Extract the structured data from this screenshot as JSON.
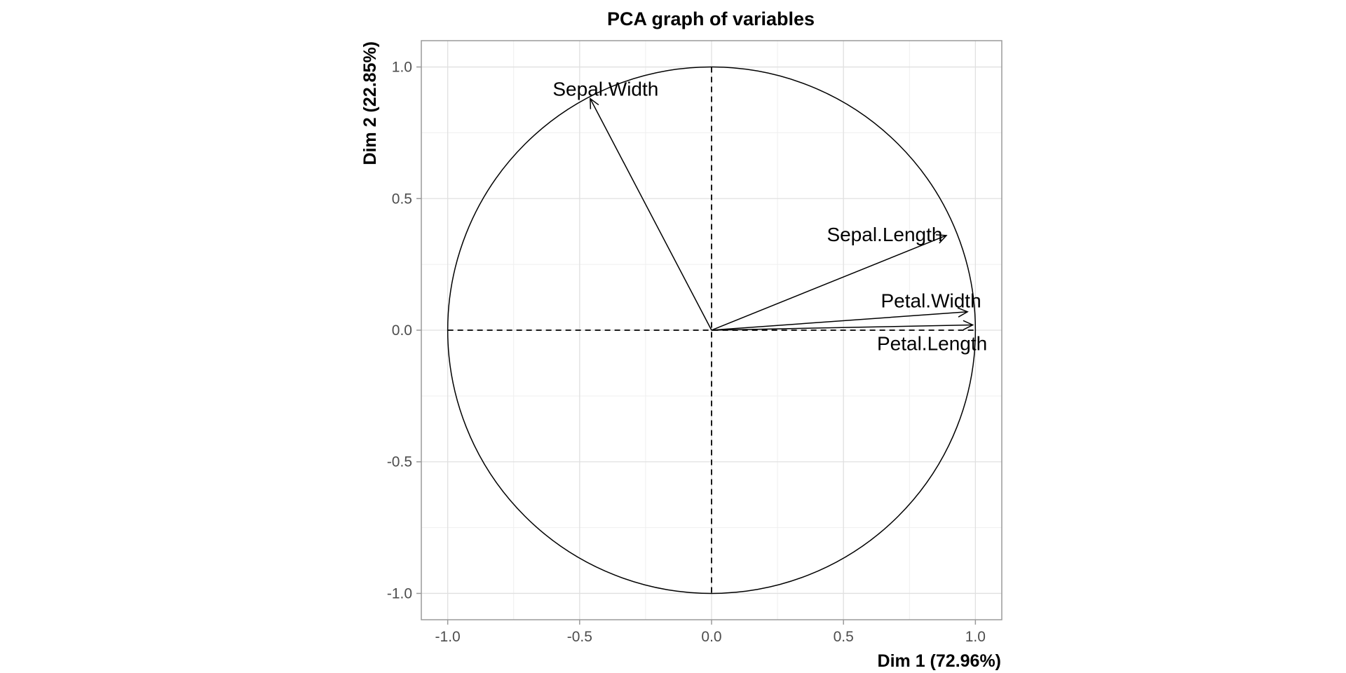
{
  "chart_data": {
    "type": "scatter",
    "subtype": "pca-correlation-circle",
    "title": "PCA graph of variables",
    "xlabel": "Dim 1 (72.96%)",
    "ylabel": "Dim 2 (22.85%)",
    "xlim": [
      -1.1,
      1.1
    ],
    "ylim": [
      -1.1,
      1.1
    ],
    "xticks": [
      -1.0,
      -0.5,
      0.0,
      0.5,
      1.0
    ],
    "yticks": [
      -1.0,
      -0.5,
      0.0,
      0.5,
      1.0
    ],
    "xtick_labels": [
      "-1.0",
      "-0.5",
      "0.0",
      "0.5",
      "1.0"
    ],
    "ytick_labels": [
      "-1.0",
      "-0.5",
      "0.0",
      "0.5",
      "1.0"
    ],
    "grid": true,
    "unit_circle": true,
    "variables": [
      {
        "name": "Sepal.Width",
        "x": -0.46,
        "y": 0.88,
        "label": "Sepal.Width"
      },
      {
        "name": "Sepal.Length",
        "x": 0.89,
        "y": 0.36,
        "label": "Sepal.Length"
      },
      {
        "name": "Petal.Width",
        "x": 0.97,
        "y": 0.07,
        "label": "Petal.Width"
      },
      {
        "name": "Petal.Length",
        "x": 0.99,
        "y": 0.02,
        "label": "Petal.Length"
      }
    ]
  }
}
